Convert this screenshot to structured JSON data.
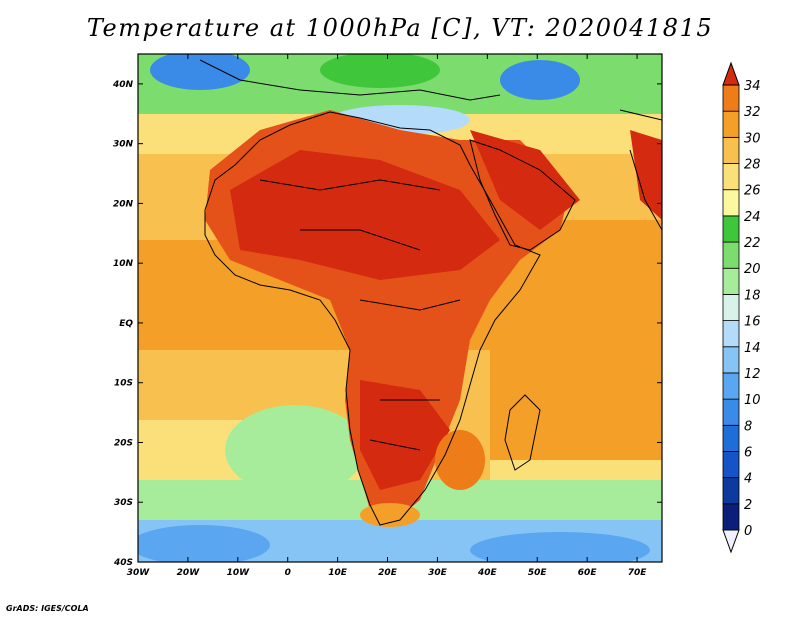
{
  "title": "Temperature at 1000hPa [C], VT: 2020041815",
  "credit": "GrADS: IGES/COLA",
  "map": {
    "lon_range": [
      -30,
      75
    ],
    "lat_range": [
      -40,
      45
    ],
    "lon_labels": [
      "30W",
      "20W",
      "10W",
      "0",
      "10E",
      "20E",
      "30E",
      "40E",
      "50E",
      "60E",
      "70E"
    ],
    "lat_labels": [
      "40N",
      "30N",
      "20N",
      "10N",
      "EQ",
      "10S",
      "20S",
      "30S",
      "40S"
    ]
  },
  "colorbar": {
    "ticks": [
      "34",
      "32",
      "30",
      "28",
      "26",
      "24",
      "22",
      "20",
      "18",
      "16",
      "14",
      "12",
      "10",
      "8",
      "6",
      "4",
      "2",
      "0"
    ],
    "colors": [
      "#f0f0ff",
      "#0b1f7a",
      "#0c3a9e",
      "#1554c6",
      "#1f6ed8",
      "#3a8ae8",
      "#5aa6f0",
      "#86c4f6",
      "#b4dcfa",
      "#d8f2ea",
      "#a6ec9a",
      "#7cdc6e",
      "#3fc63a",
      "#fcf8a0",
      "#fbe07a",
      "#f8c04e",
      "#f4a028",
      "#ee7c18",
      "#e4521a",
      "#d42a10"
    ]
  }
}
